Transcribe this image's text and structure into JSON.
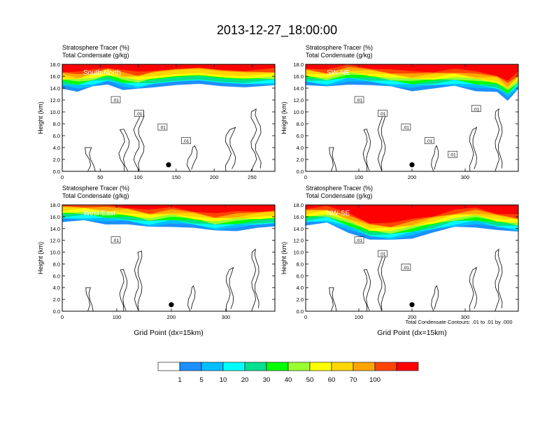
{
  "figure": {
    "title": "2013-12-27_18:00:00",
    "xlabel": "Grid Point (dx=15km)",
    "contour_note": "Total Condensate Contours: .01 to .01 by .000"
  },
  "colorbar": {
    "labels": [
      "1",
      "5",
      "10",
      "20",
      "30",
      "40",
      "50",
      "60",
      "70",
      "100"
    ],
    "colors": [
      "#ffffff",
      "#1e8fff",
      "#00bfff",
      "#00ffff",
      "#00e08f",
      "#00ff00",
      "#9aff32",
      "#ffff00",
      "#ffd700",
      "#ffa500",
      "#ff4500",
      "#ff0000"
    ]
  },
  "chart_data": [
    {
      "type": "heatmap",
      "panel_label": "South-North",
      "title_line1": "Stratosphere Tracer   (%)",
      "title_line2": "Total Condensate   (g/kg)",
      "ylabel": "Height (km)",
      "xlabel": "",
      "xlim": [
        0,
        280
      ],
      "ylim": [
        0,
        18
      ],
      "xticks": [
        0,
        50,
        100,
        150,
        200,
        250
      ],
      "yticks": [
        "0.0",
        "2.0",
        "4.0",
        "6.0",
        "8.0",
        "10.0",
        "12.0",
        "14.0",
        "16.0",
        "18.0"
      ],
      "marker": {
        "x": 140,
        "y": 1.1
      },
      "contour_labels": [
        ".01",
        ".01",
        ".01",
        ".01"
      ],
      "tropopause_height_km": [
        [
          0,
          14.6
        ],
        [
          20,
          14.3
        ],
        [
          40,
          14.8
        ],
        [
          60,
          15.3
        ],
        [
          80,
          14.6
        ],
        [
          100,
          14.4
        ],
        [
          120,
          14.8
        ],
        [
          150,
          15.2
        ],
        [
          180,
          15.4
        ],
        [
          210,
          15.0
        ],
        [
          240,
          14.8
        ],
        [
          280,
          15.0
        ]
      ]
    },
    {
      "type": "heatmap",
      "panel_label": "SW-NE",
      "title_line1": "Stratosphere Tracer   (%)",
      "title_line2": "Total Condensate   (g/kg)",
      "ylabel": "Height (km)",
      "xlabel": "",
      "xlim": [
        0,
        400
      ],
      "ylim": [
        0,
        18
      ],
      "xticks": [
        0,
        100,
        200,
        300
      ],
      "yticks": [
        "0.0",
        "2.0",
        "4.0",
        "6.0",
        "8.0",
        "10.0",
        "12.0",
        "14.0",
        "16.0",
        "18.0"
      ],
      "marker": {
        "x": 200,
        "y": 1.1
      },
      "contour_labels": [
        ".01",
        ".01",
        ".01",
        ".01",
        ".01",
        ".01"
      ],
      "tropopause_height_km": [
        [
          0,
          15.2
        ],
        [
          40,
          14.8
        ],
        [
          80,
          15.5
        ],
        [
          120,
          15.2
        ],
        [
          160,
          14.8
        ],
        [
          200,
          14.4
        ],
        [
          240,
          14.6
        ],
        [
          280,
          14.9
        ],
        [
          320,
          14.4
        ],
        [
          360,
          14.0
        ],
        [
          380,
          12.8
        ],
        [
          400,
          14.4
        ]
      ]
    },
    {
      "type": "heatmap",
      "panel_label": "West-East",
      "title_line1": "Stratosphere Tracer   (%)",
      "title_line2": "Total Condensate   (g/kg)",
      "ylabel": "Height (km)",
      "xlabel": "Grid Point (dx=15km)",
      "xlim": [
        0,
        390
      ],
      "ylim": [
        0,
        18
      ],
      "xticks": [
        0,
        100,
        200,
        300
      ],
      "yticks": [
        "0.0",
        "2.0",
        "4.0",
        "6.0",
        "8.0",
        "10.0",
        "12.0",
        "14.0",
        "16.0",
        "18.0"
      ],
      "marker": {
        "x": 200,
        "y": 1.1
      },
      "contour_labels": [
        ".01"
      ],
      "tropopause_height_km": [
        [
          0,
          15.8
        ],
        [
          40,
          15.9
        ],
        [
          80,
          15.6
        ],
        [
          120,
          15.4
        ],
        [
          160,
          14.8
        ],
        [
          200,
          15.2
        ],
        [
          240,
          14.8
        ],
        [
          280,
          14.2
        ],
        [
          320,
          14.5
        ],
        [
          360,
          14.8
        ],
        [
          390,
          15.0
        ]
      ]
    },
    {
      "type": "heatmap",
      "panel_label": "NW-SE",
      "title_line1": "Stratosphere Tracer   (%)",
      "title_line2": "Total Condensate   (g/kg)",
      "ylabel": "Height (km)",
      "xlabel": "Grid Point (dx=15km)",
      "xlim": [
        0,
        400
      ],
      "ylim": [
        0,
        18
      ],
      "xticks": [
        0,
        100,
        200,
        300
      ],
      "yticks": [
        "0.0",
        "2.0",
        "4.0",
        "6.0",
        "8.0",
        "10.0",
        "12.0",
        "14.0",
        "16.0",
        "18.0"
      ],
      "marker": {
        "x": 200,
        "y": 1.1
      },
      "contour_labels": [
        ".01",
        ".01",
        ".01"
      ],
      "tropopause_height_km": [
        [
          0,
          15.2
        ],
        [
          40,
          15.5
        ],
        [
          80,
          14.2
        ],
        [
          120,
          12.8
        ],
        [
          160,
          12.6
        ],
        [
          200,
          13.2
        ],
        [
          240,
          14.0
        ],
        [
          280,
          14.8
        ],
        [
          320,
          15.1
        ],
        [
          360,
          14.4
        ],
        [
          400,
          14.0
        ]
      ]
    }
  ]
}
